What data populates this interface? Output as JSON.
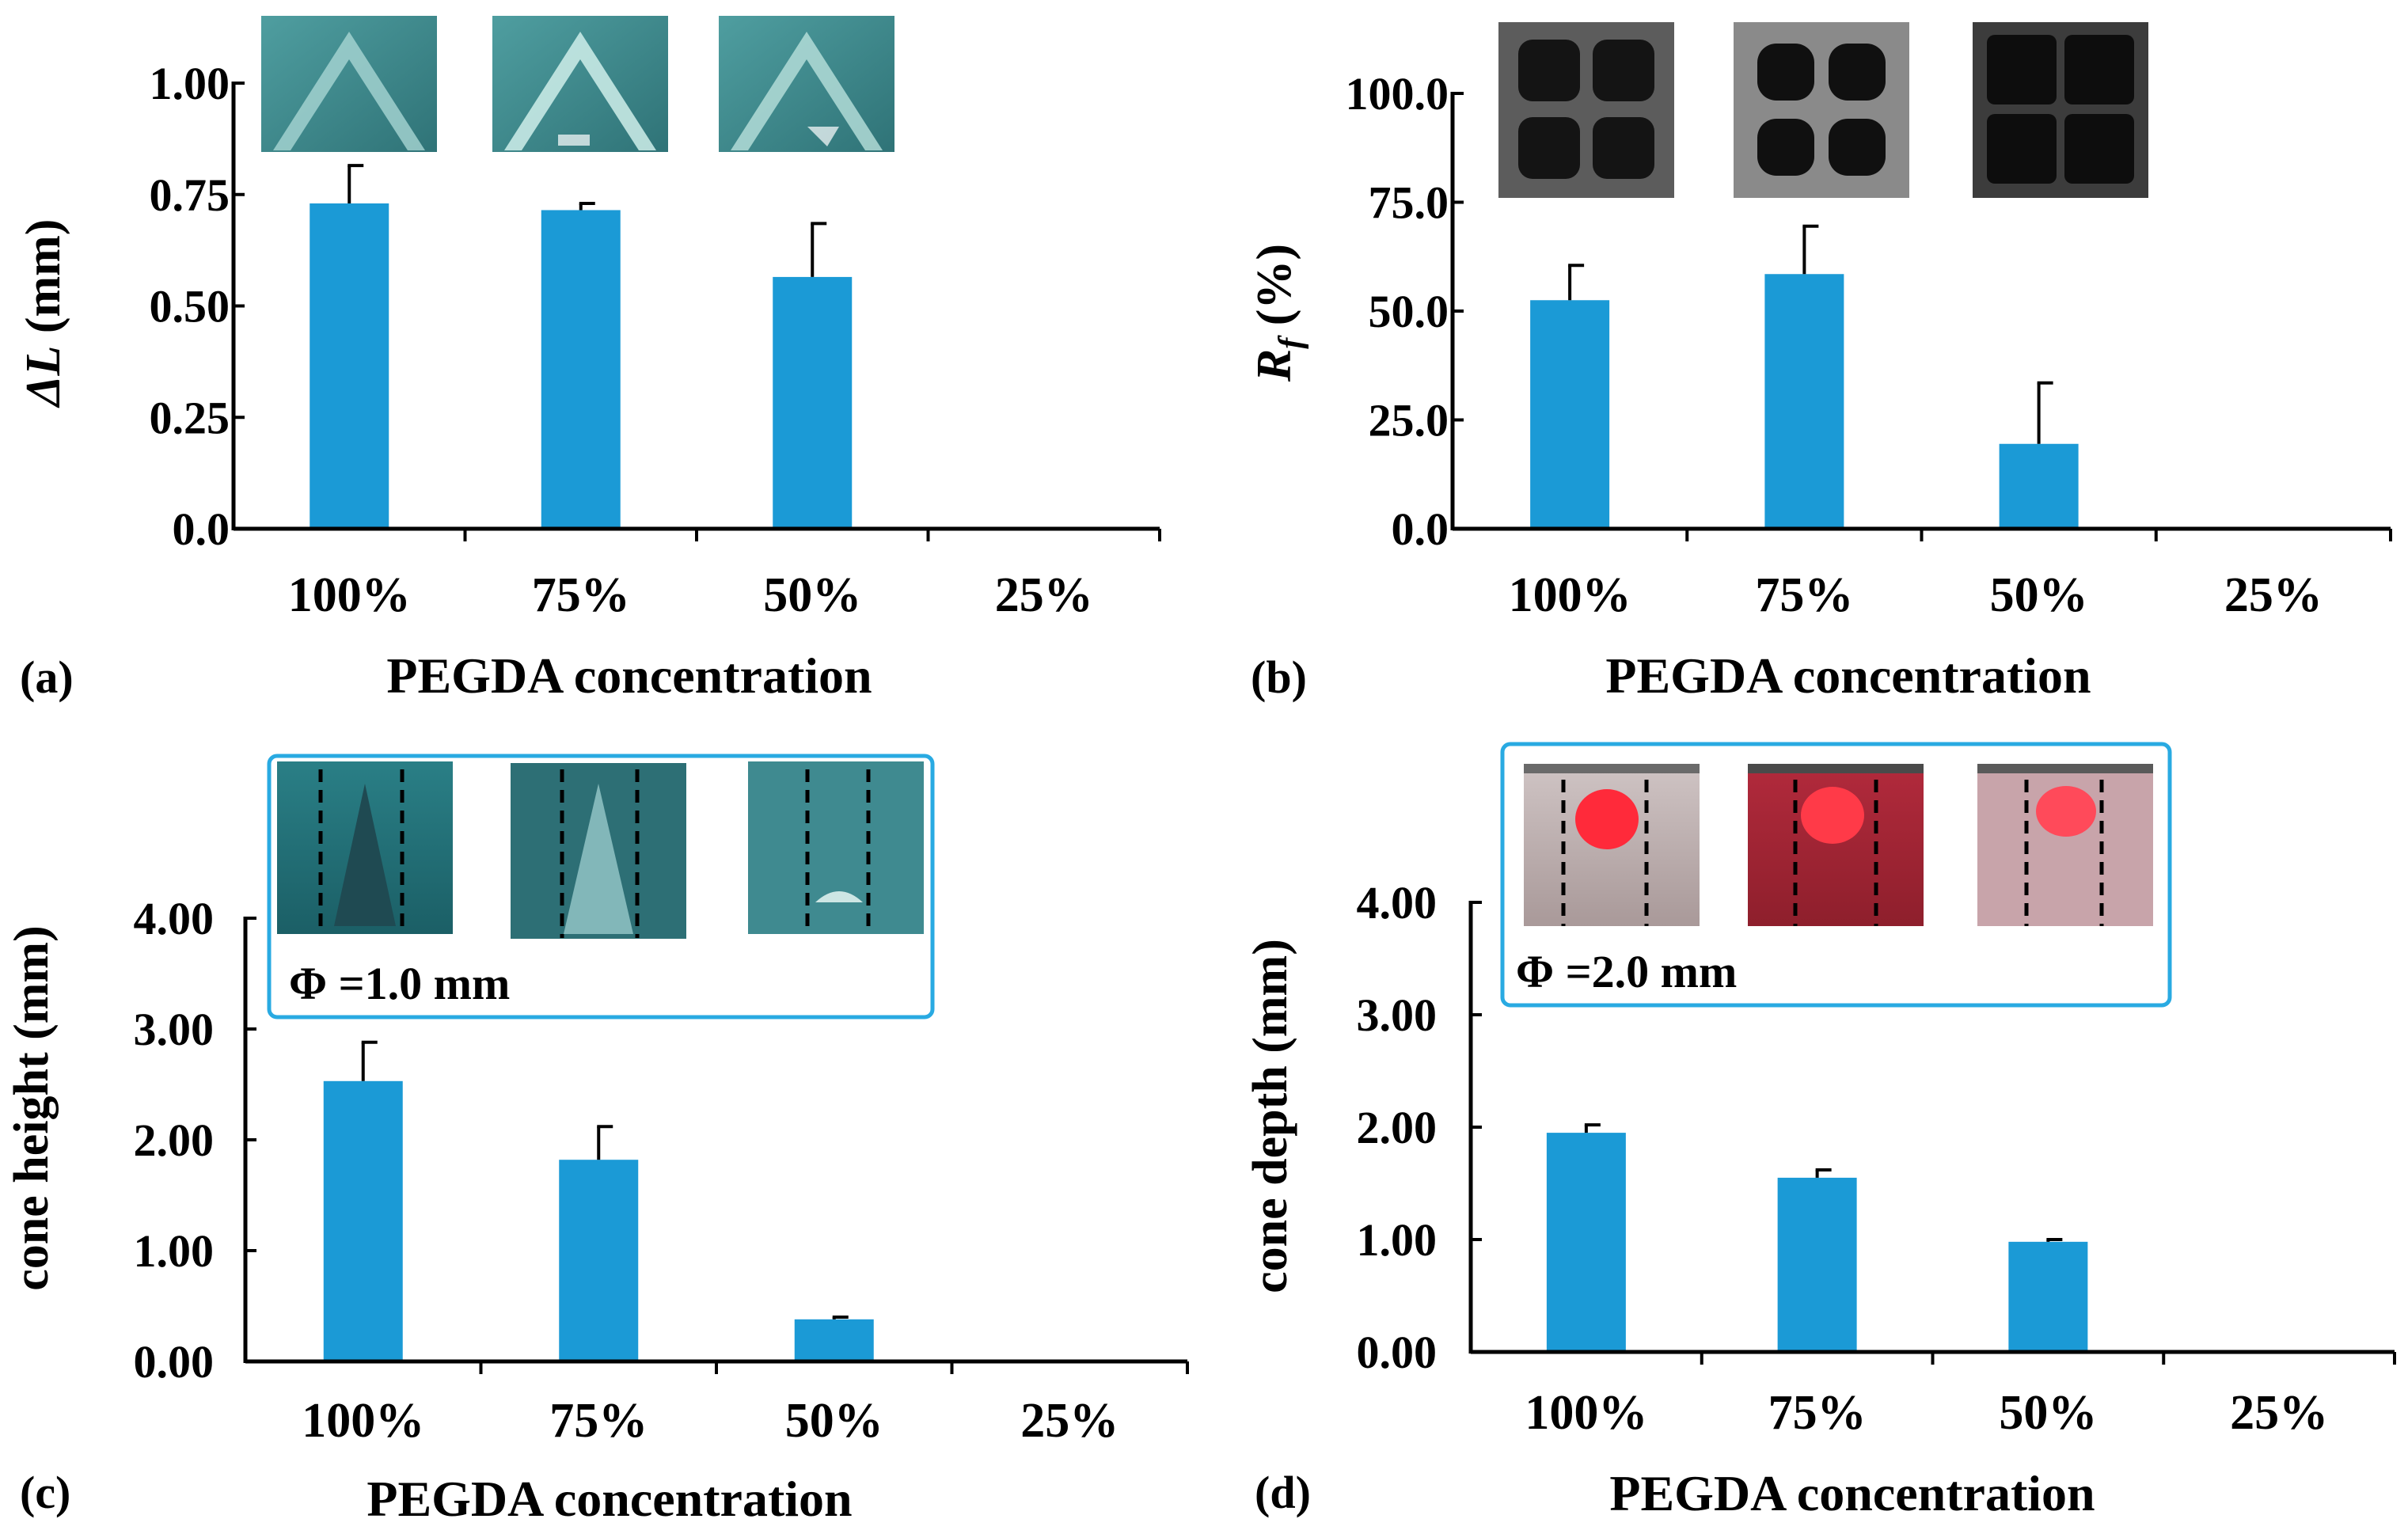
{
  "colors": {
    "bar": "#1b9ad6",
    "inset_border": "#29aae2",
    "axis": "#000000"
  },
  "chart_data": [
    {
      "panel_label": "(a)",
      "type": "bar",
      "categories": [
        "100%",
        "75%",
        "50%",
        "25%"
      ],
      "values": [
        0.73,
        0.715,
        0.565,
        null
      ],
      "errors": [
        0.085,
        0.015,
        0.12,
        null
      ],
      "xlabel": "PEGDA concentration",
      "ylabel_main": "ΔL",
      "ylabel_sub": "",
      "ylabel_unit": " (mm)",
      "ylim": [
        0,
        1.0
      ],
      "yticks": [
        "0.0",
        "0.25",
        "0.50",
        "0.75",
        "1.00"
      ],
      "ytick_values": [
        0,
        0.25,
        0.5,
        0.75,
        1.0
      ],
      "inset_note": "",
      "insets": [
        "triangle tip 100%",
        "triangle tip 75%",
        "triangle tip 50%"
      ]
    },
    {
      "panel_label": "(b)",
      "type": "bar",
      "categories": [
        "100%",
        "75%",
        "50%",
        "25%"
      ],
      "values": [
        52.5,
        58.5,
        19.5,
        null
      ],
      "errors": [
        8,
        11,
        14,
        null
      ],
      "xlabel": "PEGDA concentration",
      "ylabel_main": "R",
      "ylabel_sub": "f",
      "ylabel_unit": " (%)",
      "ylim": [
        0,
        100
      ],
      "yticks": [
        "0.0",
        "25.0",
        "50.0",
        "75.0",
        "100.0"
      ],
      "ytick_values": [
        0,
        25,
        50,
        75,
        100
      ],
      "inset_note": "",
      "insets": [
        "grid mesh 100%",
        "grid mesh 75%",
        "grid mesh 50%"
      ]
    },
    {
      "panel_label": "(c)",
      "type": "bar",
      "categories": [
        "100%",
        "75%",
        "50%",
        "25%"
      ],
      "values": [
        2.53,
        1.82,
        0.38,
        null
      ],
      "errors": [
        0.35,
        0.3,
        0.02,
        null
      ],
      "xlabel": "PEGDA concentration",
      "ylabel_main": "cone height (mm)",
      "ylabel_sub": "",
      "ylabel_unit": "",
      "ylim": [
        0,
        4.0
      ],
      "yticks": [
        "0.00",
        "1.00",
        "2.00",
        "3.00",
        "4.00"
      ],
      "ytick_values": [
        0,
        1,
        2,
        3,
        4
      ],
      "inset_note": "Φ =1.0 mm",
      "insets": [
        "cone 100%",
        "cone 75%",
        "cone 50%"
      ]
    },
    {
      "panel_label": "(d)",
      "type": "bar",
      "categories": [
        "100%",
        "75%",
        "50%",
        "25%"
      ],
      "values": [
        1.95,
        1.55,
        0.98,
        null
      ],
      "errors": [
        0.07,
        0.07,
        0.02,
        null
      ],
      "xlabel": "PEGDA concentration",
      "ylabel_main": "cone depth (mm)",
      "ylabel_sub": "",
      "ylabel_unit": "",
      "ylim": [
        0,
        4.0
      ],
      "yticks": [
        "0.00",
        "1.00",
        "2.00",
        "3.00",
        "4.00"
      ],
      "ytick_values": [
        0,
        1,
        2,
        3,
        4
      ],
      "inset_note": "Φ =2.0 mm",
      "insets": [
        "red dye 100%",
        "red dye 75%",
        "red dye 50%"
      ]
    }
  ]
}
